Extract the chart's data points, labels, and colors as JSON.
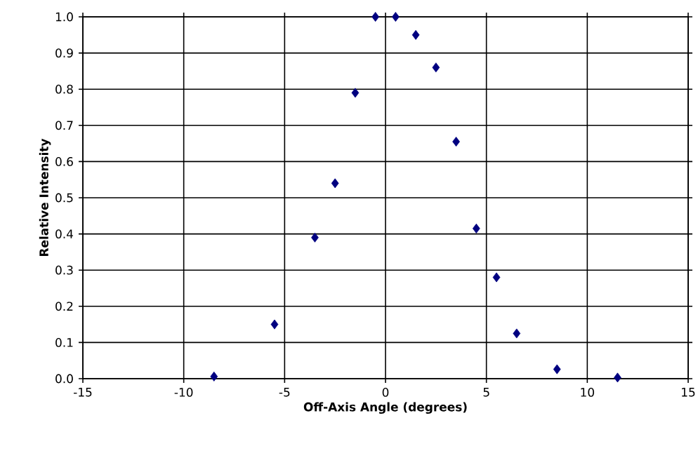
{
  "chart_data": {
    "type": "scatter",
    "xlabel": "Off-Axis Angle (degrees)",
    "ylabel": "Relative Intensity",
    "x": [
      -8.5,
      -5.5,
      -3.5,
      -2.5,
      -1.5,
      -0.5,
      0.5,
      1.5,
      2.5,
      3.5,
      4.5,
      5.5,
      6.5,
      8.5,
      11.5
    ],
    "values": [
      0.006,
      0.15,
      0.39,
      0.54,
      0.79,
      1.0,
      1.0,
      0.95,
      0.86,
      0.655,
      0.415,
      0.28,
      0.125,
      0.026,
      0.003
    ],
    "color": "#000080",
    "marker": "diamond",
    "xlim": [
      -15,
      15
    ],
    "xticks": [
      -15,
      -10,
      -5,
      0,
      5,
      10,
      15
    ],
    "ylim": [
      0,
      1
    ],
    "yticks": [
      "0.0",
      0.1,
      0.2,
      0.3,
      0.4,
      0.5,
      0.6,
      0.7,
      0.8,
      0.9,
      "1.0"
    ],
    "grid": true
  }
}
